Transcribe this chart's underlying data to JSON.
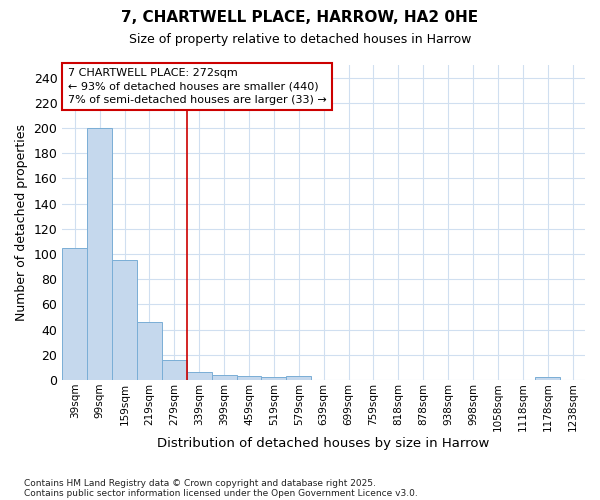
{
  "title1": "7, CHARTWELL PLACE, HARROW, HA2 0HE",
  "title2": "Size of property relative to detached houses in Harrow",
  "xlabel": "Distribution of detached houses by size in Harrow",
  "ylabel": "Number of detached properties",
  "categories": [
    "39sqm",
    "99sqm",
    "159sqm",
    "219sqm",
    "279sqm",
    "339sqm",
    "399sqm",
    "459sqm",
    "519sqm",
    "579sqm",
    "639sqm",
    "699sqm",
    "759sqm",
    "818sqm",
    "878sqm",
    "938sqm",
    "998sqm",
    "1058sqm",
    "1118sqm",
    "1178sqm",
    "1238sqm"
  ],
  "values": [
    105,
    200,
    95,
    46,
    16,
    6,
    4,
    3,
    2,
    3,
    0,
    0,
    0,
    0,
    0,
    0,
    0,
    0,
    0,
    2,
    0
  ],
  "bar_color": "#c5d8ed",
  "bar_edge_color": "#7aaed6",
  "background_color": "#ffffff",
  "grid_color": "#d0dff0",
  "vline_x": 4.5,
  "vline_color": "#cc0000",
  "annotation_text": "7 CHARTWELL PLACE: 272sqm\n← 93% of detached houses are smaller (440)\n7% of semi-detached houses are larger (33) →",
  "annotation_box_color": "#cc0000",
  "footer1": "Contains HM Land Registry data © Crown copyright and database right 2025.",
  "footer2": "Contains public sector information licensed under the Open Government Licence v3.0.",
  "ylim": [
    0,
    250
  ],
  "yticks": [
    0,
    20,
    40,
    60,
    80,
    100,
    120,
    140,
    160,
    180,
    200,
    220,
    240
  ]
}
